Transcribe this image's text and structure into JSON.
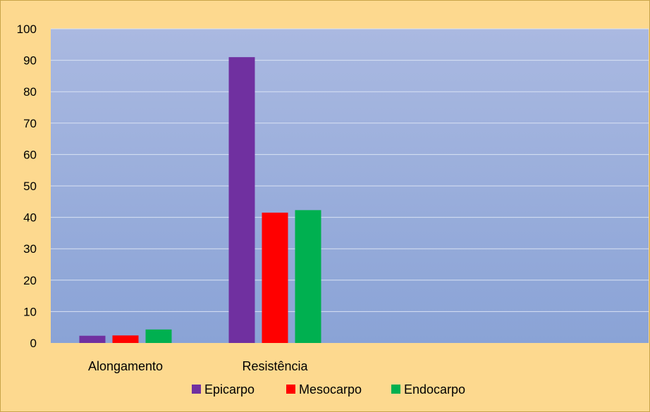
{
  "chart_data": {
    "type": "bar",
    "categories": [
      "Alongamento",
      "Resistência"
    ],
    "series": [
      {
        "name": "Epicarpo",
        "values": [
          2.3,
          91
        ],
        "color": "#7030a0"
      },
      {
        "name": "Mesocarpo",
        "values": [
          2.4,
          41.5
        ],
        "color": "#ff0000"
      },
      {
        "name": "Endocarpo",
        "values": [
          4.3,
          42.3
        ],
        "color": "#00b050"
      }
    ],
    "ylim": [
      0,
      100
    ],
    "yticks": [
      0,
      10,
      20,
      30,
      40,
      50,
      60,
      70,
      80,
      90,
      100
    ],
    "grid": true,
    "legend_position": "bottom",
    "title": "",
    "xlabel": "",
    "ylabel": ""
  }
}
